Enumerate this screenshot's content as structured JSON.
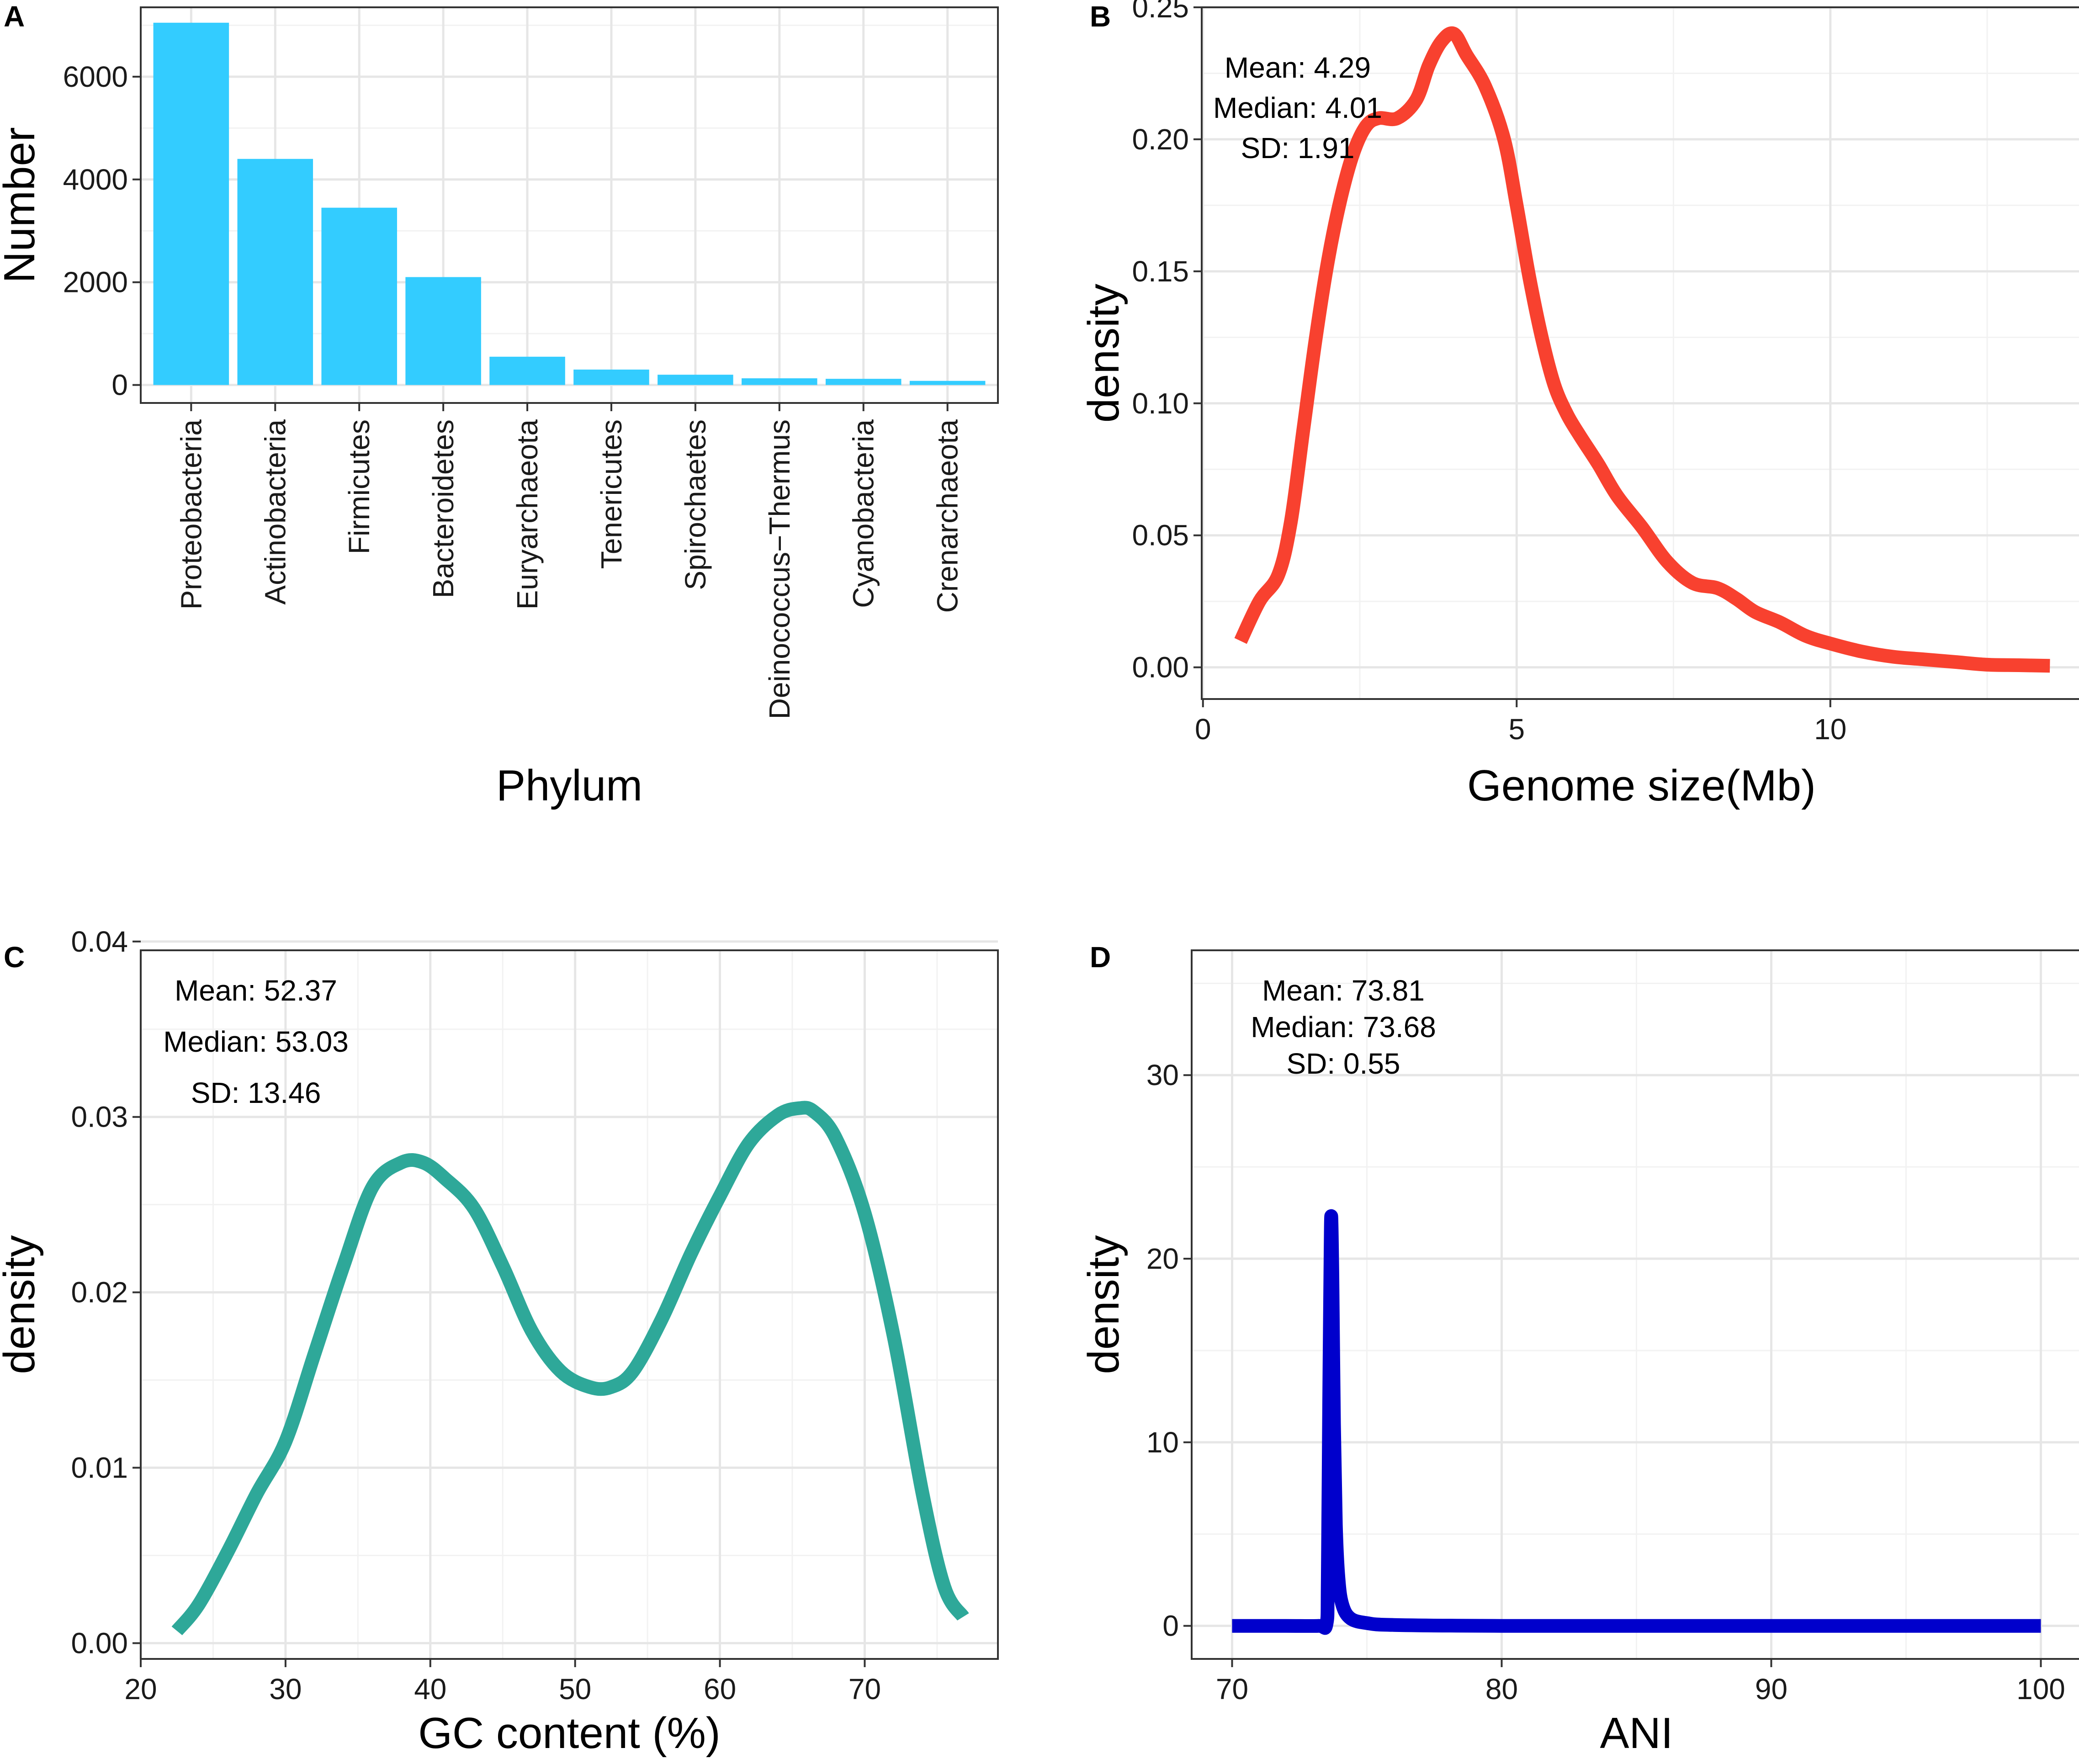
{
  "chart_data": [
    {
      "panel": "A",
      "type": "bar",
      "title": "",
      "xlabel": "Phylum",
      "ylabel": "Number",
      "ylim": [
        -350,
        7350
      ],
      "yticks": [
        0,
        2000,
        4000,
        6000
      ],
      "ytick_labels": [
        "0",
        "2000",
        "4000",
        "6000"
      ],
      "categories": [
        "Proteobacteria",
        "Actinobacteria",
        "Firmicutes",
        "Bacteroidetes",
        "Euryarchaeota",
        "Tenericutes",
        "Spirochaetes",
        "Deinococcus−Thermus",
        "Cyanobacteria",
        "Crenarchaeota"
      ],
      "values": [
        7050,
        4400,
        3450,
        2100,
        550,
        300,
        200,
        130,
        120,
        80
      ],
      "color": "#33CCFF",
      "grid": true,
      "annotations": []
    },
    {
      "panel": "B",
      "type": "line",
      "title": "",
      "xlabel": "Genome size(Mb)",
      "ylabel": "density",
      "xlim": [
        -0.02,
        14
      ],
      "ylim": [
        -0.012,
        0.25
      ],
      "xticks": [
        0,
        5,
        10
      ],
      "xtick_labels": [
        "0",
        "5",
        "10"
      ],
      "yticks": [
        0,
        0.05,
        0.1,
        0.15,
        0.2,
        0.25
      ],
      "ytick_labels": [
        "0.00",
        "0.05",
        "0.10",
        "0.15",
        "0.20",
        "0.25"
      ],
      "color": "#F8412F",
      "grid": true,
      "x": [
        0.6,
        0.9,
        1.2,
        1.4,
        1.6,
        1.8,
        2.0,
        2.2,
        2.4,
        2.6,
        2.8,
        3.1,
        3.4,
        3.6,
        3.8,
        4.0,
        4.2,
        4.5,
        4.8,
        5.0,
        5.2,
        5.4,
        5.6,
        5.8,
        6.0,
        6.3,
        6.6,
        7.0,
        7.4,
        7.8,
        8.2,
        8.5,
        8.8,
        9.2,
        9.6,
        10.0,
        10.5,
        11.0,
        11.5,
        12.0,
        12.5,
        13.0,
        13.5
      ],
      "y": [
        0.01,
        0.025,
        0.035,
        0.055,
        0.09,
        0.125,
        0.155,
        0.178,
        0.195,
        0.205,
        0.208,
        0.208,
        0.215,
        0.228,
        0.237,
        0.24,
        0.232,
        0.22,
        0.2,
        0.175,
        0.148,
        0.125,
        0.107,
        0.096,
        0.088,
        0.077,
        0.065,
        0.053,
        0.04,
        0.032,
        0.03,
        0.026,
        0.021,
        0.017,
        0.012,
        0.009,
        0.006,
        0.004,
        0.003,
        0.002,
        0.001,
        0.0008,
        0.0006
      ],
      "annotations": [
        "Mean: 4.29",
        "Median: 4.01",
        "SD: 1.91"
      ]
    },
    {
      "panel": "C",
      "type": "line",
      "title": "",
      "xlabel": "GC content (%)",
      "ylabel": "density",
      "xlim": [
        20,
        79.2
      ],
      "ylim": [
        -0.0009,
        0.0395
      ],
      "xticks": [
        20,
        30,
        40,
        50,
        60,
        70
      ],
      "xtick_labels": [
        "20",
        "30",
        "40",
        "50",
        "60",
        "70"
      ],
      "yticks": [
        0,
        0.01,
        0.02,
        0.03,
        0.04
      ],
      "ytick_labels": [
        "0.00",
        "0.01",
        "0.02",
        "0.03",
        "0.04"
      ],
      "color": "#2EA899",
      "grid": true,
      "x": [
        22.5,
        24,
        26,
        28,
        30,
        32,
        34,
        36,
        38,
        39.5,
        41,
        43,
        45,
        47,
        49,
        51,
        52.5,
        54,
        56,
        58,
        60,
        62,
        64,
        65.5,
        66.5,
        68,
        70,
        72,
        74,
        75.5,
        76.8
      ],
      "y": [
        0.0007,
        0.0022,
        0.0052,
        0.0085,
        0.0115,
        0.0165,
        0.0215,
        0.026,
        0.0274,
        0.0274,
        0.0265,
        0.0248,
        0.0215,
        0.0178,
        0.0155,
        0.0146,
        0.0146,
        0.0155,
        0.0185,
        0.0222,
        0.0255,
        0.0285,
        0.0301,
        0.0305,
        0.0303,
        0.0288,
        0.0245,
        0.0175,
        0.0085,
        0.0032,
        0.0015
      ],
      "annotations": [
        "Mean: 52.37",
        "Median: 53.03",
        "SD: 13.46"
      ]
    },
    {
      "panel": "D",
      "type": "line",
      "title": "",
      "xlabel": "ANI",
      "ylabel": "density",
      "xlim": [
        68.5,
        101.5
      ],
      "ylim": [
        -1.8,
        36.8
      ],
      "xticks": [
        70,
        80,
        90,
        100
      ],
      "xtick_labels": [
        "70",
        "80",
        "90",
        "100"
      ],
      "yticks": [
        0,
        10,
        20,
        30
      ],
      "ytick_labels": [
        "0",
        "10",
        "20",
        "30"
      ],
      "color": "#0000CC",
      "grid": true,
      "x": [
        70,
        72,
        73.2,
        73.5,
        73.55,
        73.6,
        73.65,
        73.68,
        73.72,
        73.78,
        73.85,
        73.95,
        74.1,
        74.4,
        75.0,
        76,
        80,
        90,
        100
      ],
      "y": [
        0,
        0,
        0,
        0.1,
        2.5,
        12,
        20,
        22.3,
        19,
        11,
        5.5,
        2.5,
        1.1,
        0.4,
        0.15,
        0.05,
        0,
        0,
        0
      ],
      "annotations": [
        "Mean: 73.81",
        "Median: 73.68",
        "SD: 0.55"
      ]
    }
  ]
}
